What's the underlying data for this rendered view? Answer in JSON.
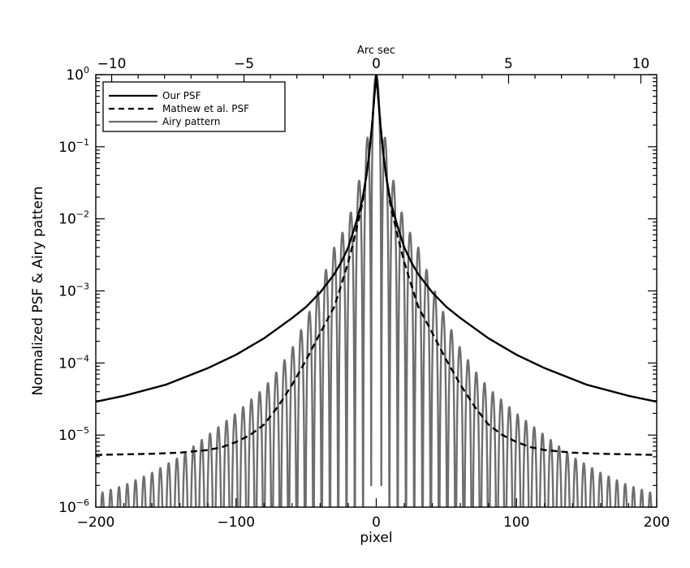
{
  "chart_data": {
    "type": "line",
    "title": "",
    "xlabel": "pixel",
    "ylabel": "Normalized PSF & Airy pattern",
    "top_xlabel": "Arc sec",
    "xlim": [
      -200,
      200
    ],
    "top_xlim": [
      -10.6,
      10.6
    ],
    "ylim": [
      1e-06,
      1
    ],
    "yscale": "log",
    "x_ticks": [
      "−200",
      "−100",
      "0",
      "100",
      "200"
    ],
    "top_x_ticks": [
      "−10",
      "−5",
      "0",
      "5",
      "10"
    ],
    "y_ticks": [
      {
        "base": "10",
        "exp": "0"
      },
      {
        "base": "10",
        "exp": "−1"
      },
      {
        "base": "10",
        "exp": "−2"
      },
      {
        "base": "10",
        "exp": "−3"
      },
      {
        "base": "10",
        "exp": "−4"
      },
      {
        "base": "10",
        "exp": "−5"
      },
      {
        "base": "10",
        "exp": "−6"
      }
    ],
    "grid": false,
    "legend_position": "top-left",
    "series": [
      {
        "name": "Our PSF",
        "style": "solid",
        "color": "#000000",
        "x": [
          0,
          1,
          2,
          3,
          5,
          7,
          10,
          13,
          16,
          20,
          25,
          30,
          40,
          50,
          60,
          80,
          100,
          120,
          150,
          180,
          200
        ],
        "y": [
          1.0,
          0.6,
          0.35,
          0.2,
          0.08,
          0.04,
          0.018,
          0.011,
          0.007,
          0.004,
          0.0025,
          0.0017,
          0.00095,
          0.0006,
          0.00042,
          0.00022,
          0.00013,
          8.5e-05,
          5e-05,
          3.5e-05,
          2.9e-05
        ]
      },
      {
        "name": "Mathew et al. PSF",
        "style": "dashed",
        "color": "#000000",
        "x": [
          0,
          1,
          2,
          3,
          5,
          7,
          10,
          13,
          16,
          20,
          25,
          30,
          40,
          50,
          60,
          70,
          80,
          90,
          100,
          110,
          120,
          140,
          160,
          200
        ],
        "y": [
          1.0,
          0.6,
          0.35,
          0.2,
          0.08,
          0.04,
          0.016,
          0.009,
          0.005,
          0.0025,
          0.0012,
          0.0006,
          0.00026,
          0.00011,
          5e-05,
          2.5e-05,
          1.4e-05,
          1e-05,
          8e-06,
          6.8e-06,
          6.2e-06,
          5.7e-06,
          5.5e-06,
          5.3e-06
        ]
      },
      {
        "name": "Airy pattern",
        "style": "solid",
        "color": "#6e6e6e",
        "first_zero_px": 3.5,
        "ring_spacing_px": 5.9,
        "envelope": {
          "x": [
            4,
            10,
            20,
            30,
            40,
            50,
            60,
            70,
            80,
            90,
            100,
            120,
            140,
            160,
            180,
            200
          ],
          "y": [
            0.25,
            0.05,
            0.009,
            0.004,
            0.0012,
            0.0004,
            0.00016,
            8e-05,
            4.5e-05,
            3e-05,
            2e-05,
            1e-05,
            5e-06,
            3e-06,
            2e-06,
            1.5e-06
          ]
        }
      }
    ]
  }
}
